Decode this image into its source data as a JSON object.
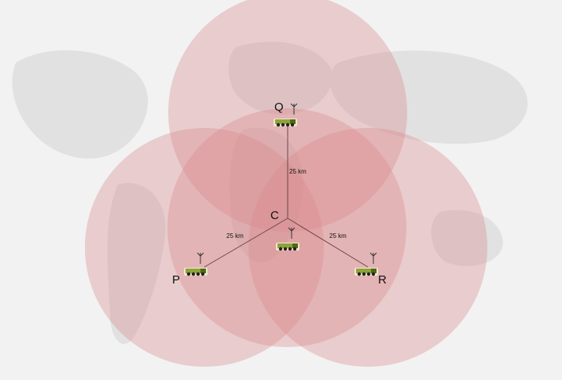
{
  "colors": {
    "background": "#f1f1f1",
    "landmass": "#e2e2e2",
    "circle_fill": "#d9878a",
    "line": "#6a4848",
    "label": "#111111",
    "truck_cab": "#4e6b12",
    "truck_body": "#8ea33a",
    "wheel": "#222222"
  },
  "nodes": {
    "q": {
      "label": "Q"
    },
    "c": {
      "label": "C"
    },
    "p": {
      "label": "P"
    },
    "r": {
      "label": "R"
    }
  },
  "links": {
    "c_q": {
      "distance": "25 km"
    },
    "c_p": {
      "distance": "25 km"
    },
    "c_r": {
      "distance": "25 km"
    }
  },
  "icons": {
    "vehicle": "radio-truck-icon",
    "antenna": "antenna-icon"
  }
}
